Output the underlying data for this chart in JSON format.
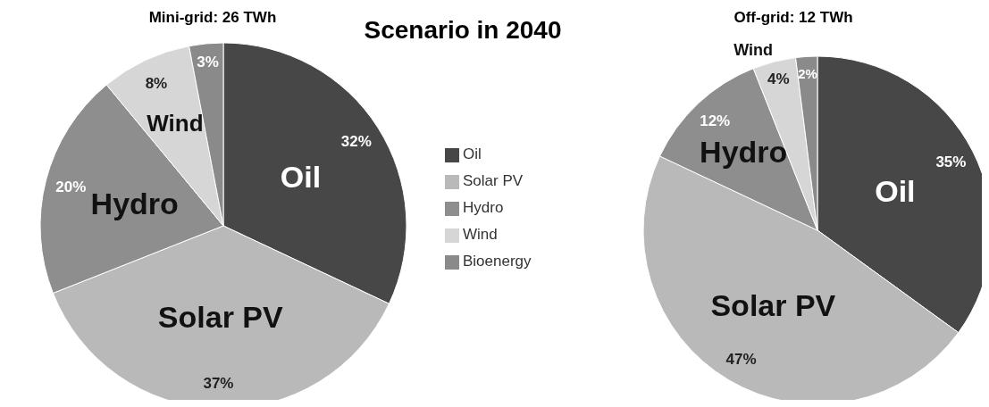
{
  "chart_data": [
    {
      "type": "pie",
      "title": "Mini-grid: 26 TWh",
      "annotations": [
        "Scenario in 2040"
      ],
      "categories": [
        "Oil",
        "Solar PV",
        "Hydro",
        "Wind",
        "Bioenergy"
      ],
      "values": [
        32,
        37,
        20,
        8,
        3
      ],
      "value_labels": [
        "32%",
        "37%",
        "20%",
        "8%",
        "3%"
      ],
      "colors": [
        "#474747",
        "#b9b9b9",
        "#8e8e8e",
        "#d6d6d6",
        "#8a8a8a"
      ],
      "legend": "right"
    },
    {
      "type": "pie",
      "title": "Off-grid: 12 TWh",
      "categories": [
        "Oil",
        "Solar PV",
        "Hydro",
        "Wind",
        null
      ],
      "values": [
        35,
        47,
        12,
        4,
        2
      ],
      "value_labels": [
        "35%",
        "47%",
        "12%",
        "4%",
        "2%"
      ],
      "colors": [
        "#474747",
        "#b9b9b9",
        "#8e8e8e",
        "#d6d6d6",
        "#8a8a8a"
      ]
    }
  ]
}
